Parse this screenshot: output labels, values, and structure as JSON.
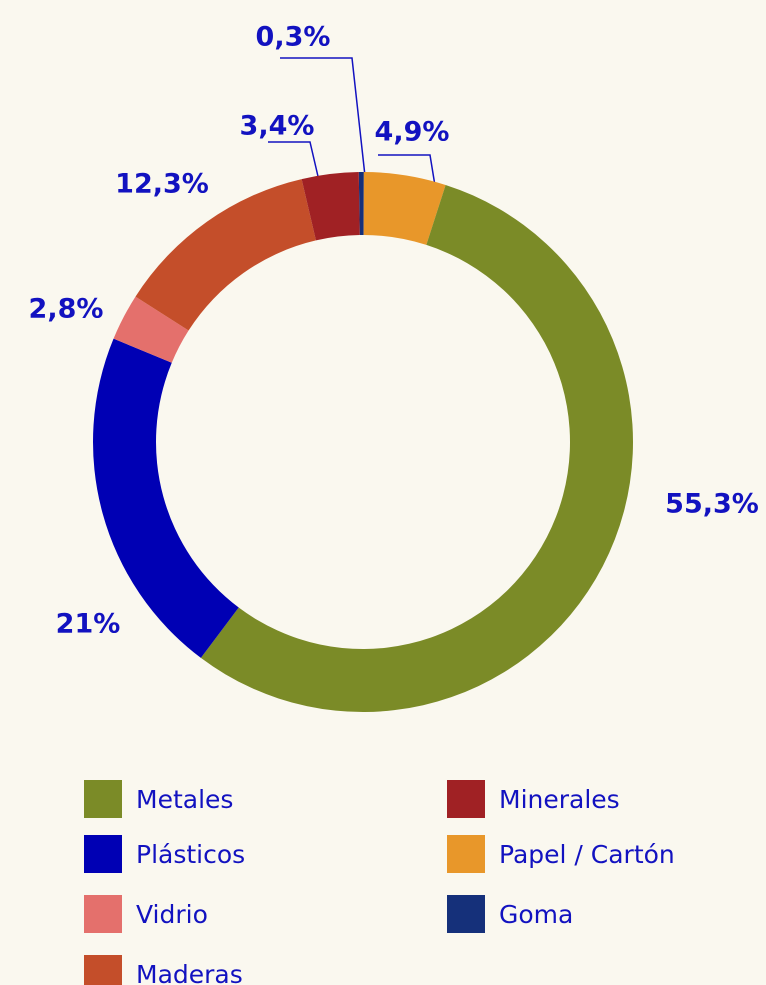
{
  "chart_data": {
    "type": "donut",
    "categories": [
      "Metales",
      "Plásticos",
      "Vidrio",
      "Maderas",
      "Minerales",
      "Papel / Cartón",
      "Goma"
    ],
    "values": [
      55.3,
      21,
      2.8,
      12.3,
      3.4,
      4.9,
      0.3
    ],
    "value_labels": [
      "55,3%",
      "21%",
      "2,8%",
      "12,3%",
      "3,4%",
      "4,9%",
      "0,3%"
    ],
    "colors": [
      "#7b8b27",
      "#0000b4",
      "#e4706c",
      "#c44e2a",
      "#a02124",
      "#e8972a",
      "#15307a"
    ]
  }
}
